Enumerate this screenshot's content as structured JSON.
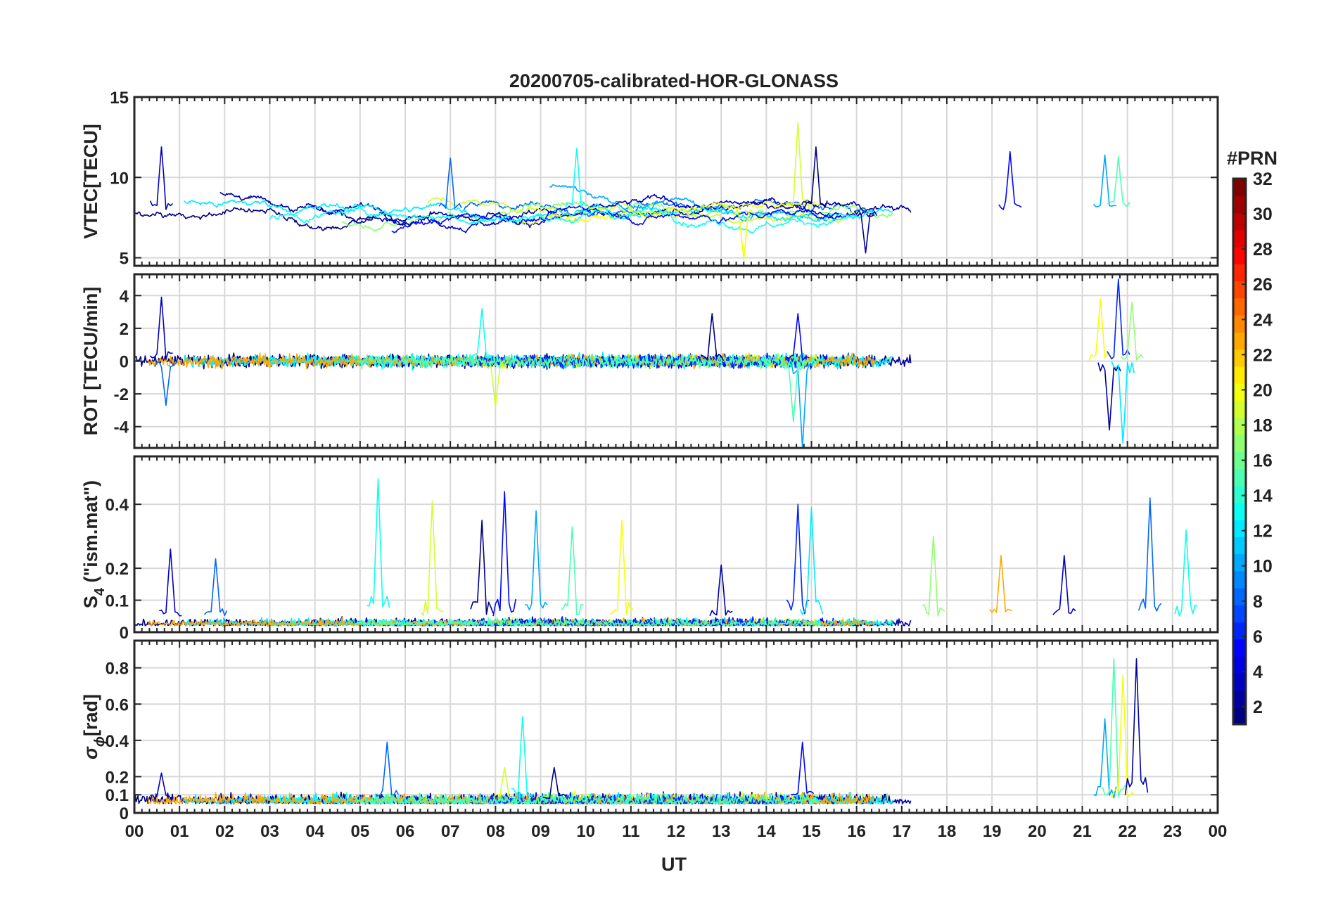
{
  "chart_data": {
    "type": "line",
    "title": "20200705-calibrated-HOR-GLONASS",
    "xlabel": "UT",
    "x_range_hours": [
      0,
      24
    ],
    "x_tick_labels": [
      "00",
      "01",
      "02",
      "03",
      "04",
      "05",
      "06",
      "07",
      "08",
      "09",
      "10",
      "11",
      "12",
      "13",
      "14",
      "15",
      "16",
      "17",
      "18",
      "19",
      "20",
      "21",
      "22",
      "23",
      "00"
    ],
    "grid": true,
    "colorbar": {
      "label": "#PRN",
      "range": [
        1,
        32
      ],
      "tick_values": [
        2,
        4,
        6,
        8,
        10,
        12,
        14,
        16,
        18,
        20,
        22,
        24,
        26,
        28,
        30,
        32
      ],
      "tick_labels": [
        "2",
        "4",
        "6",
        "8",
        "10",
        "12",
        "14",
        "16",
        "18",
        "20",
        "22",
        "24",
        "26",
        "28",
        "30",
        "32"
      ],
      "colormap": "jet",
      "placement": "right"
    },
    "panels": [
      {
        "id": "vtec",
        "ylabel": "VTEC[TECU]",
        "ylim": [
          4.5,
          15
        ],
        "y_ticks": [
          5,
          10,
          15
        ],
        "y_tick_labels": [
          "5",
          "10",
          "15"
        ],
        "kind": "level",
        "baseline": 8,
        "spread": 1.2,
        "features": [
          {
            "t": 0.6,
            "value": 11.9
          },
          {
            "t": 7.0,
            "value": 11.2
          },
          {
            "t": 9.8,
            "value": 11.8
          },
          {
            "t": 14.7,
            "value": 13.4
          },
          {
            "t": 15.1,
            "value": 11.9
          },
          {
            "t": 19.4,
            "value": 11.6
          },
          {
            "t": 21.5,
            "value": 11.4
          },
          {
            "t": 21.8,
            "value": 11.3
          },
          {
            "t": 13.5,
            "value": 4.9
          },
          {
            "t": 16.2,
            "value": 5.3
          }
        ]
      },
      {
        "id": "rot",
        "ylabel": "ROT [TECU/min]",
        "ylim": [
          -5.3,
          5.3
        ],
        "y_ticks": [
          -4,
          -2,
          0,
          2,
          4
        ],
        "y_tick_labels": [
          "-4",
          "-2",
          "0",
          "2",
          "4"
        ],
        "kind": "rate",
        "baseline": 0,
        "features": [
          {
            "t": 0.6,
            "value": 3.9
          },
          {
            "t": 0.7,
            "value": -2.7
          },
          {
            "t": 7.7,
            "value": 3.2
          },
          {
            "t": 8.0,
            "value": -2.8
          },
          {
            "t": 12.8,
            "value": 2.9
          },
          {
            "t": 14.7,
            "value": 2.9
          },
          {
            "t": 14.8,
            "value": -5.3
          },
          {
            "t": 14.6,
            "value": -3.7
          },
          {
            "t": 21.4,
            "value": 3.8
          },
          {
            "t": 21.6,
            "value": -4.2
          },
          {
            "t": 21.8,
            "value": 5.0
          },
          {
            "t": 21.9,
            "value": -5.0
          },
          {
            "t": 22.1,
            "value": 3.6
          }
        ]
      },
      {
        "id": "s4",
        "ylabel_main": "S",
        "ylabel_sub": "4",
        "ylabel_rest": " (\"ism.mat\")",
        "ylim": [
          0,
          0.55
        ],
        "y_ticks": [
          0,
          0.1,
          0.2,
          0.4
        ],
        "y_tick_labels": [
          "0",
          "0.1",
          "0.2",
          "0.4"
        ],
        "kind": "index",
        "features": [
          {
            "t": 0.8,
            "value": 0.26
          },
          {
            "t": 1.8,
            "value": 0.23
          },
          {
            "t": 5.4,
            "value": 0.48
          },
          {
            "t": 6.6,
            "value": 0.41
          },
          {
            "t": 7.7,
            "value": 0.35
          },
          {
            "t": 8.2,
            "value": 0.44
          },
          {
            "t": 8.9,
            "value": 0.38
          },
          {
            "t": 9.7,
            "value": 0.33
          },
          {
            "t": 10.8,
            "value": 0.35
          },
          {
            "t": 13.0,
            "value": 0.21
          },
          {
            "t": 14.7,
            "value": 0.4
          },
          {
            "t": 15.0,
            "value": 0.39
          },
          {
            "t": 17.7,
            "value": 0.3
          },
          {
            "t": 19.2,
            "value": 0.24
          },
          {
            "t": 20.6,
            "value": 0.24
          },
          {
            "t": 22.5,
            "value": 0.42
          },
          {
            "t": 23.3,
            "value": 0.32
          }
        ]
      },
      {
        "id": "sigma",
        "ylabel_main": "σ",
        "ylabel_sub": "ϕ",
        "ylabel_rest": "[rad]",
        "ylim": [
          0,
          0.95
        ],
        "y_ticks": [
          0,
          0.1,
          0.2,
          0.4,
          0.6,
          0.8
        ],
        "y_tick_labels": [
          "0",
          "0.1",
          "0.2",
          "0.4",
          "0.6",
          "0.8"
        ],
        "kind": "index",
        "features": [
          {
            "t": 0.6,
            "value": 0.22
          },
          {
            "t": 5.6,
            "value": 0.39
          },
          {
            "t": 8.6,
            "value": 0.53
          },
          {
            "t": 8.2,
            "value": 0.25
          },
          {
            "t": 9.3,
            "value": 0.25
          },
          {
            "t": 14.8,
            "value": 0.39
          },
          {
            "t": 21.5,
            "value": 0.52
          },
          {
            "t": 21.7,
            "value": 0.85
          },
          {
            "t": 21.9,
            "value": 0.76
          },
          {
            "t": 22.2,
            "value": 0.85
          }
        ]
      }
    ]
  }
}
